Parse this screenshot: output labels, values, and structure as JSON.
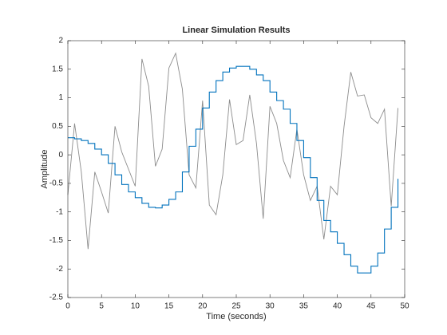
{
  "chart_data": {
    "type": "line",
    "title": "Linear Simulation Results",
    "xlabel": "Time (seconds)",
    "ylabel": "Amplitude",
    "x": [
      0,
      1,
      2,
      3,
      4,
      5,
      6,
      7,
      8,
      9,
      10,
      11,
      12,
      13,
      14,
      15,
      16,
      17,
      18,
      19,
      20,
      21,
      22,
      23,
      24,
      25,
      26,
      27,
      28,
      29,
      30,
      31,
      32,
      33,
      34,
      35,
      36,
      37,
      38,
      39,
      40,
      41,
      42,
      43,
      44,
      45,
      46,
      47,
      48,
      49
    ],
    "series": [
      {
        "color": "#8c8c8c",
        "step": false,
        "values": [
          -0.7,
          0.55,
          -0.3,
          -1.65,
          -0.3,
          -0.65,
          -1.02,
          0.5,
          0.05,
          -0.25,
          -0.55,
          1.68,
          1.2,
          -0.2,
          0.1,
          1.52,
          1.78,
          1.15,
          -0.35,
          -0.58,
          0.95,
          -0.88,
          -1.05,
          -0.35,
          0.97,
          0.18,
          0.25,
          1.05,
          0.2,
          -1.12,
          0.85,
          0.55,
          -0.1,
          -0.4,
          0.45,
          -0.35,
          -0.8,
          -0.55,
          -1.48,
          -0.55,
          -0.7,
          0.5,
          1.45,
          1.03,
          1.05,
          0.65,
          0.55,
          0.8,
          -0.9,
          0.82
        ]
      },
      {
        "color": "#0072bd",
        "step": true,
        "values": [
          0.3,
          0.28,
          0.25,
          0.2,
          0.1,
          0.0,
          -0.15,
          -0.35,
          -0.52,
          -0.65,
          -0.75,
          -0.85,
          -0.92,
          -0.93,
          -0.88,
          -0.78,
          -0.65,
          -0.3,
          0.15,
          0.45,
          0.82,
          1.1,
          1.3,
          1.45,
          1.52,
          1.55,
          1.55,
          1.5,
          1.4,
          1.3,
          1.1,
          0.95,
          0.8,
          0.55,
          0.25,
          -0.05,
          -0.4,
          -0.8,
          -1.15,
          -1.35,
          -1.55,
          -1.75,
          -1.95,
          -2.07,
          -2.07,
          -1.95,
          -1.72,
          -1.3,
          -0.92,
          -0.42
        ]
      }
    ],
    "xlim": [
      0,
      50
    ],
    "xticks": [
      0,
      5,
      10,
      15,
      20,
      25,
      30,
      35,
      40,
      45,
      50
    ],
    "ylim": [
      -2.5,
      2
    ],
    "yticks": [
      -2.5,
      -2,
      -1.5,
      -1,
      -0.5,
      0,
      0.5,
      1,
      1.5,
      2
    ],
    "grid": false
  }
}
